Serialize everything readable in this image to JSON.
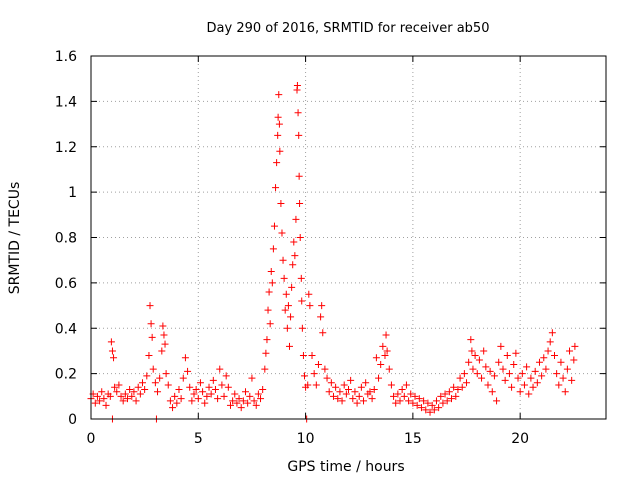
{
  "chart_data": {
    "type": "scatter",
    "title": "Day 290 of 2016, SRMTID for receiver ab50",
    "xlabel": "GPS time / hours",
    "ylabel": "SRMTID / TECUs",
    "xlim": [
      0,
      24
    ],
    "ylim": [
      0,
      1.6
    ],
    "xticks": [
      0,
      5,
      10,
      15,
      20
    ],
    "xtick_labels": [
      "0",
      "5",
      "10",
      "15",
      "20"
    ],
    "yticks": [
      0,
      0.2,
      0.4,
      0.6,
      0.8,
      1.0,
      1.2,
      1.4,
      1.6
    ],
    "ytick_labels": [
      "0",
      "0.2",
      "0.4",
      "0.6",
      "0.8",
      "1",
      "1.2",
      "1.4",
      "1.6"
    ],
    "grid": true,
    "marker": "+",
    "series": [
      {
        "name": "SRMTID",
        "color": "#ff0000",
        "points": [
          [
            0.0,
            0.09
          ],
          [
            0.1,
            0.11
          ],
          [
            0.2,
            0.07
          ],
          [
            0.3,
            0.1
          ],
          [
            0.4,
            0.08
          ],
          [
            0.5,
            0.12
          ],
          [
            0.6,
            0.09
          ],
          [
            0.7,
            0.06
          ],
          [
            0.8,
            0.11
          ],
          [
            0.9,
            0.1
          ],
          [
            0.95,
            0.34
          ],
          [
            1.0,
            0.3
          ],
          [
            1.05,
            0.27
          ],
          [
            1.0,
            0.0
          ],
          [
            1.1,
            0.14
          ],
          [
            1.2,
            0.12
          ],
          [
            1.3,
            0.15
          ],
          [
            1.4,
            0.1
          ],
          [
            1.5,
            0.08
          ],
          [
            1.6,
            0.11
          ],
          [
            1.7,
            0.09
          ],
          [
            1.8,
            0.13
          ],
          [
            1.9,
            0.1
          ],
          [
            2.0,
            0.12
          ],
          [
            2.1,
            0.08
          ],
          [
            2.2,
            0.14
          ],
          [
            2.3,
            0.11
          ],
          [
            2.4,
            0.16
          ],
          [
            2.5,
            0.13
          ],
          [
            2.6,
            0.19
          ],
          [
            2.7,
            0.28
          ],
          [
            2.75,
            0.5
          ],
          [
            2.8,
            0.42
          ],
          [
            2.85,
            0.36
          ],
          [
            2.9,
            0.22
          ],
          [
            3.0,
            0.16
          ],
          [
            3.05,
            0.0
          ],
          [
            3.1,
            0.12
          ],
          [
            3.2,
            0.18
          ],
          [
            3.3,
            0.3
          ],
          [
            3.35,
            0.41
          ],
          [
            3.4,
            0.37
          ],
          [
            3.45,
            0.33
          ],
          [
            3.5,
            0.2
          ],
          [
            3.6,
            0.15
          ],
          [
            3.7,
            0.08
          ],
          [
            3.8,
            0.05
          ],
          [
            3.9,
            0.1
          ],
          [
            4.0,
            0.07
          ],
          [
            4.1,
            0.13
          ],
          [
            4.2,
            0.09
          ],
          [
            4.3,
            0.18
          ],
          [
            4.4,
            0.27
          ],
          [
            4.5,
            0.21
          ],
          [
            4.6,
            0.14
          ],
          [
            4.7,
            0.08
          ],
          [
            4.8,
            0.11
          ],
          [
            4.9,
            0.13
          ],
          [
            5.0,
            0.09
          ],
          [
            5.1,
            0.16
          ],
          [
            5.2,
            0.12
          ],
          [
            5.3,
            0.07
          ],
          [
            5.4,
            0.1
          ],
          [
            5.5,
            0.14
          ],
          [
            5.6,
            0.11
          ],
          [
            5.7,
            0.17
          ],
          [
            5.8,
            0.13
          ],
          [
            5.9,
            0.09
          ],
          [
            6.0,
            0.22
          ],
          [
            6.1,
            0.15
          ],
          [
            6.2,
            0.1
          ],
          [
            6.3,
            0.19
          ],
          [
            6.4,
            0.14
          ],
          [
            6.5,
            0.06
          ],
          [
            6.6,
            0.08
          ],
          [
            6.7,
            0.11
          ],
          [
            6.8,
            0.07
          ],
          [
            6.9,
            0.09
          ],
          [
            7.0,
            0.05
          ],
          [
            7.1,
            0.08
          ],
          [
            7.2,
            0.12
          ],
          [
            7.3,
            0.07
          ],
          [
            7.4,
            0.1
          ],
          [
            7.5,
            0.18
          ],
          [
            7.6,
            0.08
          ],
          [
            7.7,
            0.06
          ],
          [
            7.8,
            0.11
          ],
          [
            7.9,
            0.09
          ],
          [
            8.0,
            0.13
          ],
          [
            8.1,
            0.22
          ],
          [
            8.15,
            0.29
          ],
          [
            8.2,
            0.35
          ],
          [
            8.25,
            0.48
          ],
          [
            8.3,
            0.56
          ],
          [
            8.35,
            0.42
          ],
          [
            8.4,
            0.65
          ],
          [
            8.45,
            0.6
          ],
          [
            8.5,
            0.75
          ],
          [
            8.55,
            0.85
          ],
          [
            8.6,
            1.02
          ],
          [
            8.65,
            1.13
          ],
          [
            8.7,
            1.25
          ],
          [
            8.72,
            1.33
          ],
          [
            8.75,
            1.43
          ],
          [
            8.78,
            1.3
          ],
          [
            8.8,
            1.18
          ],
          [
            8.85,
            0.95
          ],
          [
            8.9,
            0.82
          ],
          [
            8.95,
            0.7
          ],
          [
            9.0,
            0.62
          ],
          [
            9.05,
            0.48
          ],
          [
            9.1,
            0.55
          ],
          [
            9.15,
            0.4
          ],
          [
            9.2,
            0.5
          ],
          [
            9.25,
            0.32
          ],
          [
            9.3,
            0.45
          ],
          [
            9.35,
            0.58
          ],
          [
            9.4,
            0.68
          ],
          [
            9.45,
            0.78
          ],
          [
            9.5,
            0.72
          ],
          [
            9.55,
            0.88
          ],
          [
            9.6,
            1.45
          ],
          [
            9.62,
            1.47
          ],
          [
            9.65,
            1.35
          ],
          [
            9.68,
            1.25
          ],
          [
            9.7,
            1.07
          ],
          [
            9.72,
            0.95
          ],
          [
            9.75,
            0.8
          ],
          [
            9.8,
            0.62
          ],
          [
            9.82,
            0.52
          ],
          [
            9.85,
            0.4
          ],
          [
            9.9,
            0.28
          ],
          [
            9.95,
            0.19
          ],
          [
            10.0,
            0.14
          ],
          [
            10.05,
            0.0
          ],
          [
            10.1,
            0.15
          ],
          [
            10.15,
            0.55
          ],
          [
            10.2,
            0.5
          ],
          [
            10.3,
            0.28
          ],
          [
            10.4,
            0.2
          ],
          [
            10.5,
            0.15
          ],
          [
            10.6,
            0.24
          ],
          [
            10.7,
            0.45
          ],
          [
            10.75,
            0.5
          ],
          [
            10.8,
            0.38
          ],
          [
            10.9,
            0.22
          ],
          [
            11.0,
            0.18
          ],
          [
            11.1,
            0.12
          ],
          [
            11.2,
            0.16
          ],
          [
            11.3,
            0.1
          ],
          [
            11.4,
            0.14
          ],
          [
            11.5,
            0.09
          ],
          [
            11.6,
            0.12
          ],
          [
            11.7,
            0.08
          ],
          [
            11.8,
            0.15
          ],
          [
            11.9,
            0.11
          ],
          [
            12.0,
            0.13
          ],
          [
            12.1,
            0.17
          ],
          [
            12.2,
            0.09
          ],
          [
            12.3,
            0.12
          ],
          [
            12.4,
            0.07
          ],
          [
            12.5,
            0.1
          ],
          [
            12.6,
            0.14
          ],
          [
            12.7,
            0.08
          ],
          [
            12.8,
            0.16
          ],
          [
            12.9,
            0.11
          ],
          [
            13.0,
            0.12
          ],
          [
            13.1,
            0.09
          ],
          [
            13.2,
            0.13
          ],
          [
            13.3,
            0.27
          ],
          [
            13.4,
            0.18
          ],
          [
            13.5,
            0.24
          ],
          [
            13.6,
            0.32
          ],
          [
            13.7,
            0.28
          ],
          [
            13.75,
            0.37
          ],
          [
            13.8,
            0.3
          ],
          [
            13.9,
            0.22
          ],
          [
            14.0,
            0.15
          ],
          [
            14.1,
            0.1
          ],
          [
            14.2,
            0.07
          ],
          [
            14.3,
            0.11
          ],
          [
            14.4,
            0.08
          ],
          [
            14.5,
            0.13
          ],
          [
            14.6,
            0.1
          ],
          [
            14.7,
            0.15
          ],
          [
            14.8,
            0.08
          ],
          [
            14.9,
            0.11
          ],
          [
            15.0,
            0.07
          ],
          [
            15.1,
            0.1
          ],
          [
            15.2,
            0.06
          ],
          [
            15.3,
            0.09
          ],
          [
            15.4,
            0.05
          ],
          [
            15.5,
            0.08
          ],
          [
            15.6,
            0.04
          ],
          [
            15.7,
            0.07
          ],
          [
            15.8,
            0.03
          ],
          [
            15.9,
            0.06
          ],
          [
            16.0,
            0.04
          ],
          [
            16.1,
            0.08
          ],
          [
            16.2,
            0.05
          ],
          [
            16.3,
            0.1
          ],
          [
            16.4,
            0.07
          ],
          [
            16.5,
            0.11
          ],
          [
            16.6,
            0.08
          ],
          [
            16.7,
            0.12
          ],
          [
            16.8,
            0.09
          ],
          [
            16.9,
            0.14
          ],
          [
            17.0,
            0.1
          ],
          [
            17.1,
            0.13
          ],
          [
            17.2,
            0.18
          ],
          [
            17.3,
            0.14
          ],
          [
            17.4,
            0.2
          ],
          [
            17.5,
            0.16
          ],
          [
            17.6,
            0.25
          ],
          [
            17.7,
            0.35
          ],
          [
            17.75,
            0.3
          ],
          [
            17.8,
            0.22
          ],
          [
            17.9,
            0.28
          ],
          [
            18.0,
            0.2
          ],
          [
            18.1,
            0.26
          ],
          [
            18.2,
            0.18
          ],
          [
            18.3,
            0.3
          ],
          [
            18.4,
            0.23
          ],
          [
            18.5,
            0.15
          ],
          [
            18.6,
            0.21
          ],
          [
            18.7,
            0.12
          ],
          [
            18.8,
            0.19
          ],
          [
            18.9,
            0.08
          ],
          [
            19.0,
            0.25
          ],
          [
            19.1,
            0.32
          ],
          [
            19.2,
            0.22
          ],
          [
            19.3,
            0.17
          ],
          [
            19.4,
            0.28
          ],
          [
            19.5,
            0.2
          ],
          [
            19.6,
            0.14
          ],
          [
            19.7,
            0.24
          ],
          [
            19.8,
            0.29
          ],
          [
            19.9,
            0.18
          ],
          [
            20.0,
            0.12
          ],
          [
            20.1,
            0.2
          ],
          [
            20.2,
            0.15
          ],
          [
            20.3,
            0.23
          ],
          [
            20.4,
            0.11
          ],
          [
            20.5,
            0.18
          ],
          [
            20.6,
            0.14
          ],
          [
            20.7,
            0.21
          ],
          [
            20.8,
            0.16
          ],
          [
            20.9,
            0.25
          ],
          [
            21.0,
            0.19
          ],
          [
            21.1,
            0.27
          ],
          [
            21.2,
            0.22
          ],
          [
            21.3,
            0.3
          ],
          [
            21.4,
            0.34
          ],
          [
            21.5,
            0.38
          ],
          [
            21.6,
            0.28
          ],
          [
            21.7,
            0.2
          ],
          [
            21.8,
            0.15
          ],
          [
            21.9,
            0.25
          ],
          [
            22.0,
            0.18
          ],
          [
            22.1,
            0.12
          ],
          [
            22.2,
            0.22
          ],
          [
            22.3,
            0.3
          ],
          [
            22.4,
            0.17
          ],
          [
            22.5,
            0.26
          ],
          [
            22.55,
            0.32
          ]
        ]
      }
    ]
  }
}
